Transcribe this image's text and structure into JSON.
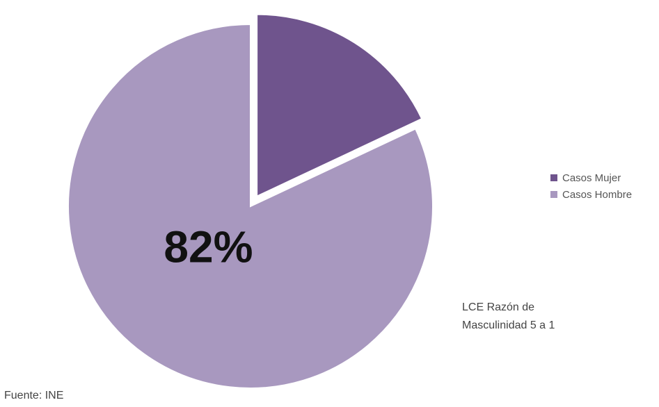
{
  "chart_data": {
    "type": "pie",
    "title": "",
    "categories": [
      "Casos Mujer",
      "Casos Hombre"
    ],
    "values": [
      18,
      82
    ],
    "colors": [
      "#6f548d",
      "#a898bf"
    ],
    "exploded": [
      "Casos Mujer"
    ],
    "data_labels": [
      "",
      "82%"
    ],
    "legend": {
      "placement": "right",
      "entries": [
        "Casos Mujer",
        "Casos Hombre"
      ]
    }
  },
  "annotation": {
    "line1": "LCE Razón  de",
    "line2": "Masculinidad 5 a 1"
  },
  "source": "Fuente: INE"
}
